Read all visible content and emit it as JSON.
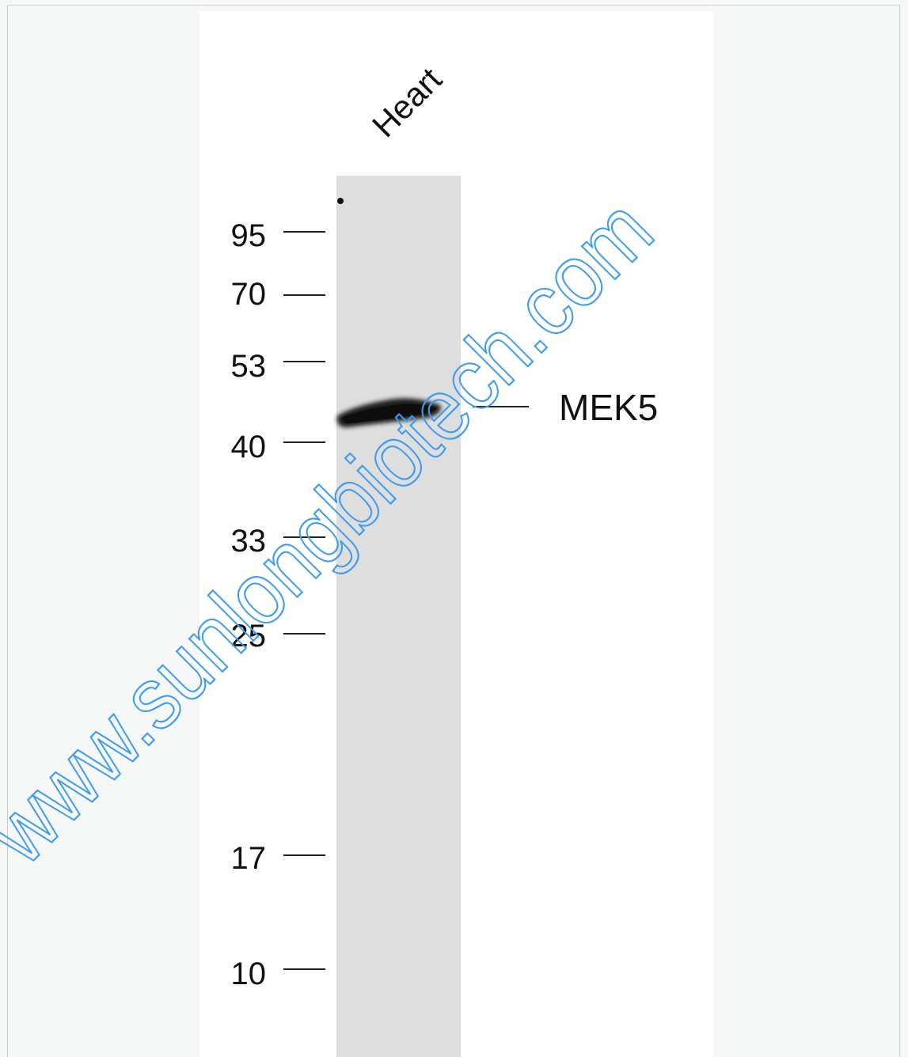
{
  "blot": {
    "lane_label": "Heart",
    "band_label": "MEK5",
    "watermark": "www.sunlongbiotech.com",
    "markers": [
      "95",
      "70",
      "53",
      "40",
      "33",
      "25",
      "17",
      "10"
    ]
  },
  "colors": {
    "background": "#f6f7f7",
    "panel": "#ffffff",
    "lane": "#dedede",
    "band": "#1a1a1a",
    "watermark": "#3d9cf0"
  }
}
